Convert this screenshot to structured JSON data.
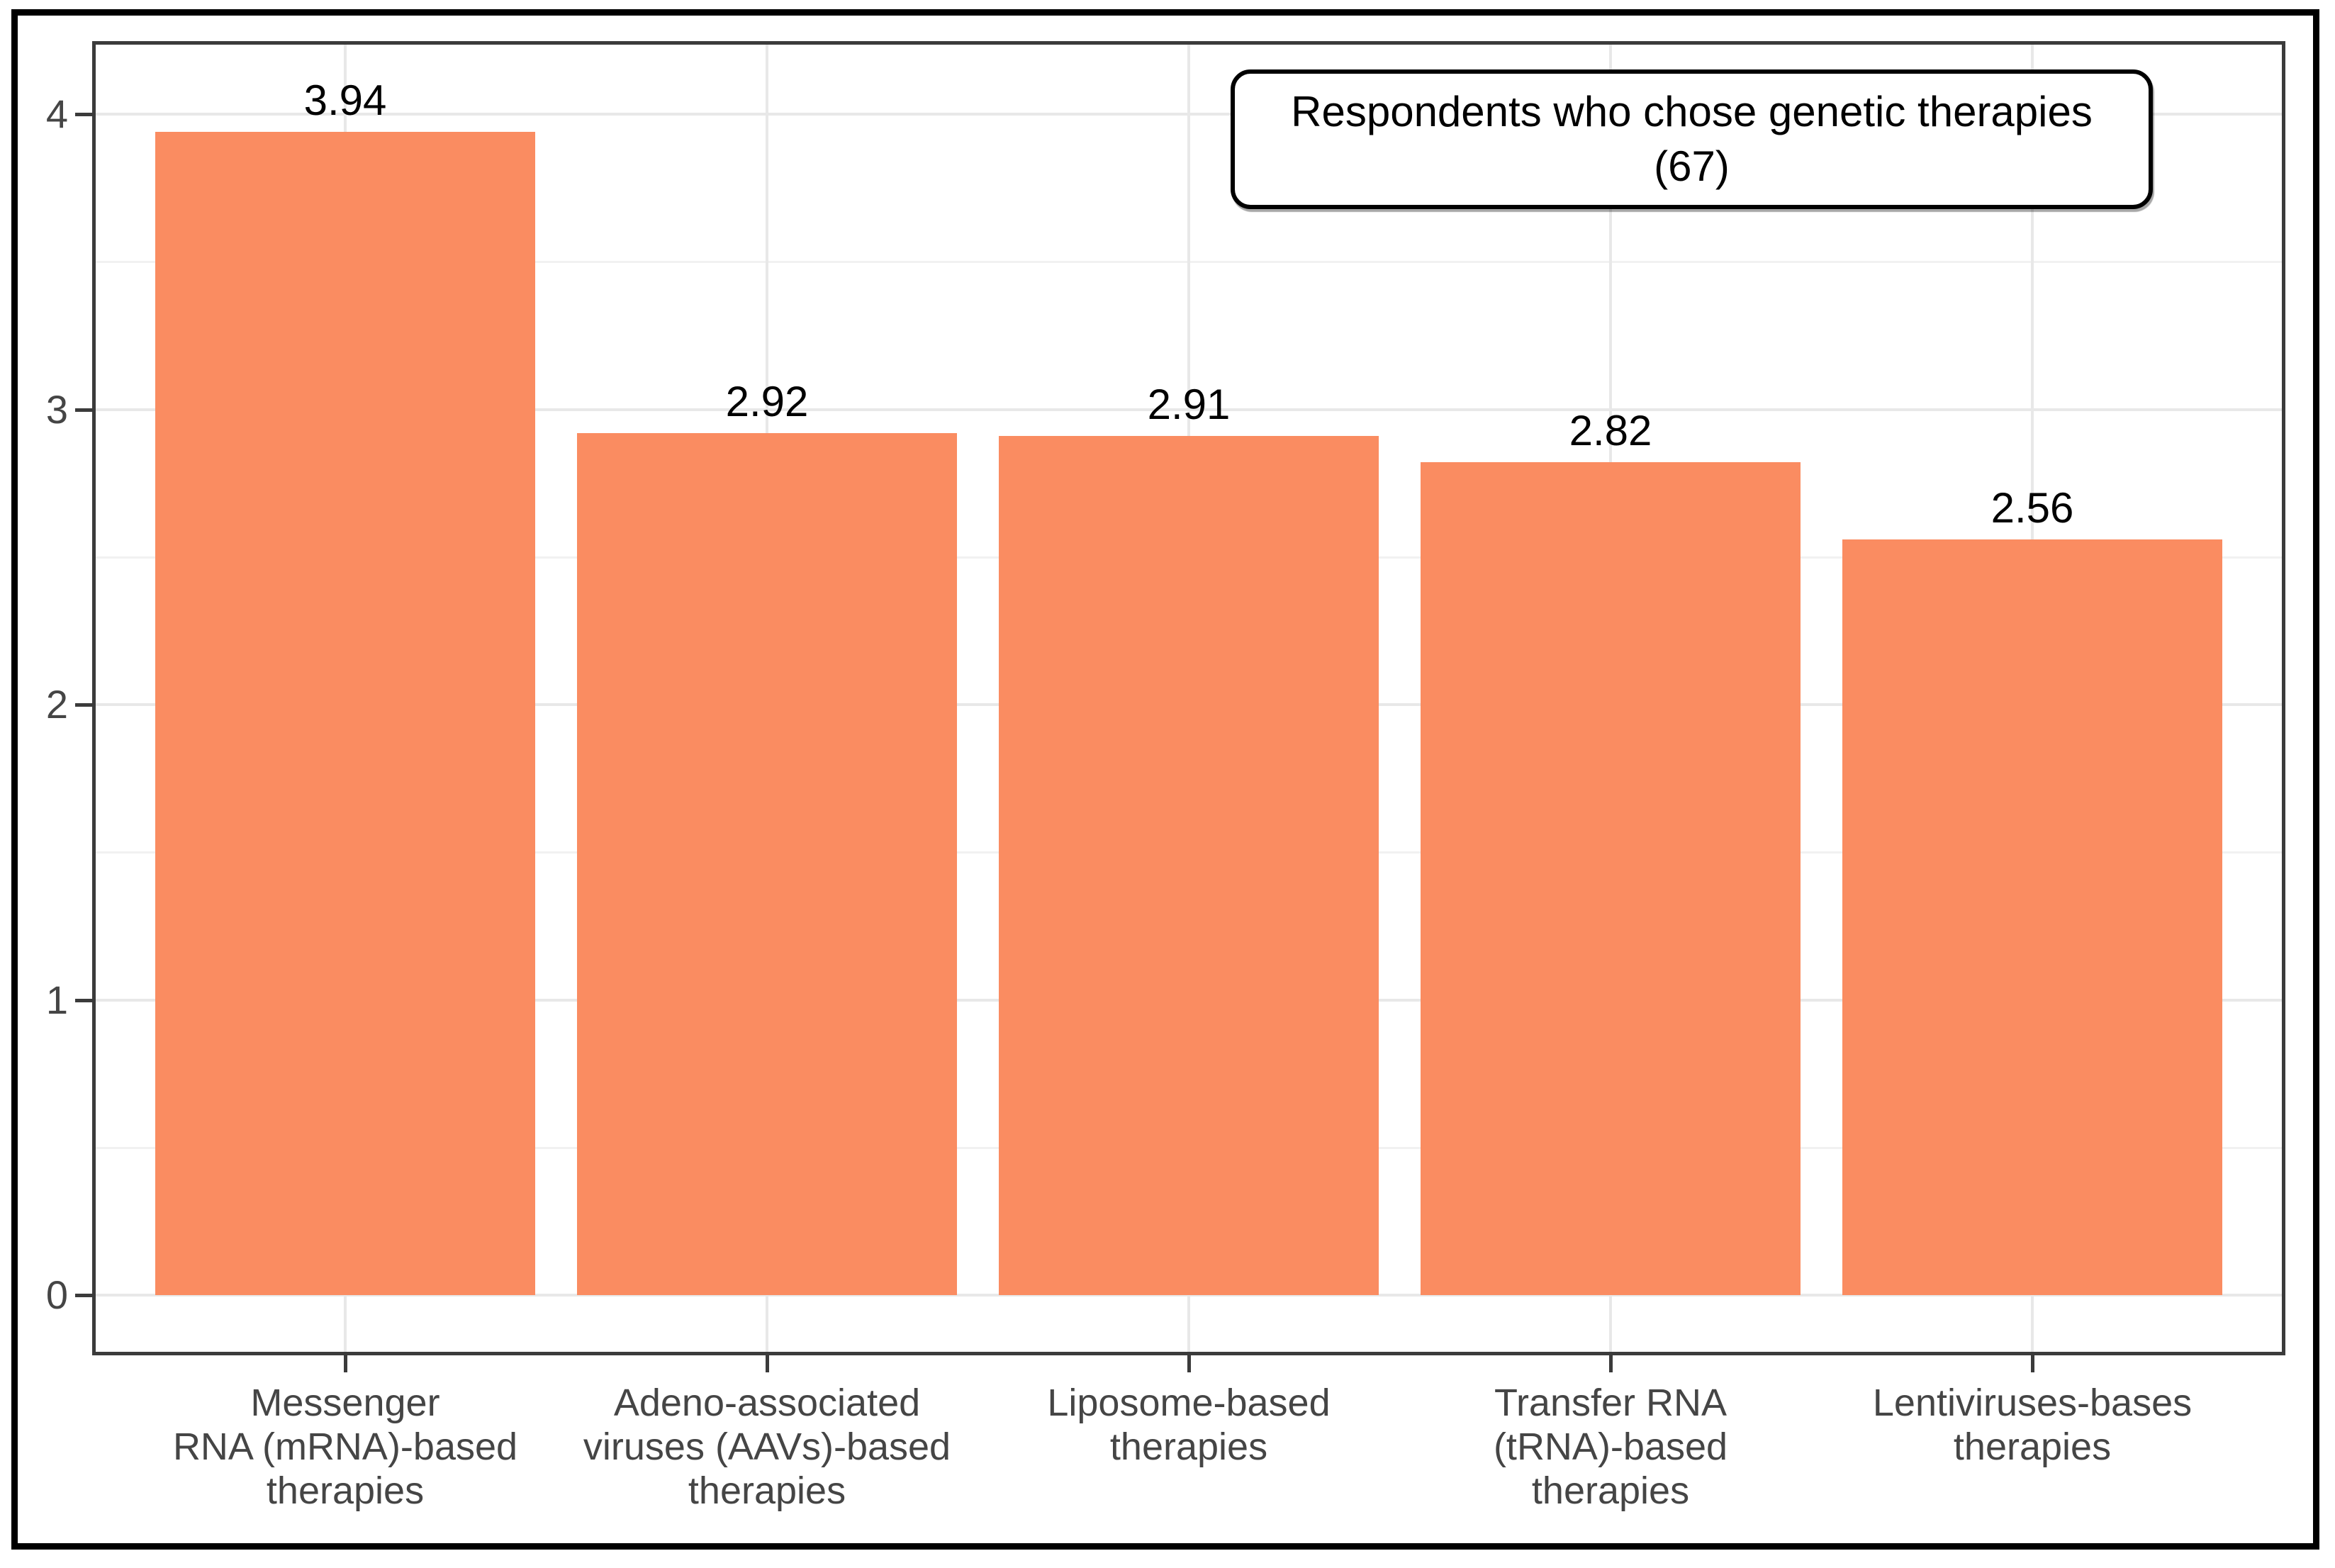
{
  "chart_data": {
    "type": "bar",
    "legend_box": {
      "line1": "Respondents who chose genetic therapies",
      "line2": "(67)"
    },
    "categories": [
      "Messenger RNA (mRNA)-based therapies",
      "Adeno-associated viruses (AAVs)-based therapies",
      "Liposome-based therapies",
      "Transfer RNA (tRNA)-based therapies",
      "Lentiviruses-bases therapies"
    ],
    "category_label_lines": [
      [
        "Messenger",
        "RNA (mRNA)-based",
        "therapies"
      ],
      [
        "Adeno-associated",
        "viruses (AAVs)-based",
        "therapies"
      ],
      [
        "Liposome-based",
        "therapies"
      ],
      [
        "Transfer RNA",
        "(tRNA)-based",
        "therapies"
      ],
      [
        "Lentiviruses-bases",
        "therapies"
      ]
    ],
    "values": [
      3.94,
      2.92,
      2.91,
      2.82,
      2.56
    ],
    "bar_value_labels": [
      "3.94",
      "2.92",
      "2.91",
      "2.82",
      "2.56"
    ],
    "xlabel": "",
    "ylabel": "",
    "y_ticks": [
      0,
      1,
      2,
      3,
      4
    ],
    "y_tick_labels": [
      "0",
      "1",
      "2",
      "3",
      "4"
    ],
    "y_minor_gridlines": [
      0.5,
      1.5,
      2.5,
      3.5
    ],
    "ylim": [
      0,
      4.25
    ],
    "grid": "horizontal major + minor, vertical major at category centers",
    "legend_position": "top-right inside plot",
    "colors": {
      "bar_fill": "#FA8C61",
      "grid_major": "#E8E8E8",
      "grid_minor": "#F1F1F1",
      "panel_border": "#3B3B3B",
      "axis_tick": "#3B3B3B",
      "axis_text": "#454545",
      "bar_label_text": "#000000",
      "legend_border": "#000000",
      "legend_background": "#FFFFFF",
      "outer_border": "#000000",
      "background": "#FFFFFF"
    }
  }
}
